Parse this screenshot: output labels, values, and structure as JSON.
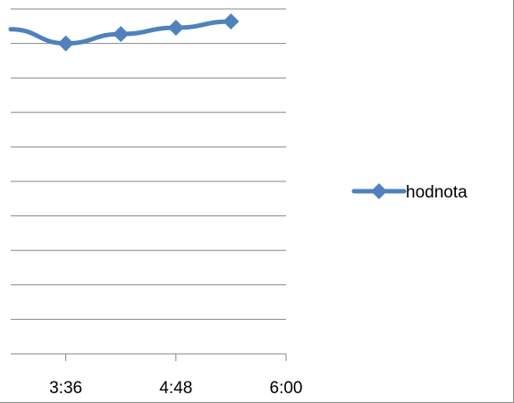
{
  "chart_data": {
    "type": "line",
    "title": "",
    "xlabel": "",
    "ylabel": "",
    "x_ticks": [
      "3:36",
      "4:48",
      "6:00"
    ],
    "x_tick_values_hours": [
      3.6,
      4.8,
      6.0
    ],
    "xlim_hours": [
      3.0,
      6.0
    ],
    "ylim": [
      0,
      11
    ],
    "grid": true,
    "legend_position": "right",
    "series": [
      {
        "name": "hodnota",
        "color": "#4f81bd",
        "marker": "diamond",
        "points": [
          {
            "x_hours": 3.0,
            "y": 10.35
          },
          {
            "x_hours": 3.6,
            "y": 9.9
          },
          {
            "x_hours": 4.2,
            "y": 10.2
          },
          {
            "x_hours": 4.8,
            "y": 10.4
          },
          {
            "x_hours": 5.4,
            "y": 10.6
          }
        ],
        "marker_points_from_index": 1
      }
    ]
  }
}
